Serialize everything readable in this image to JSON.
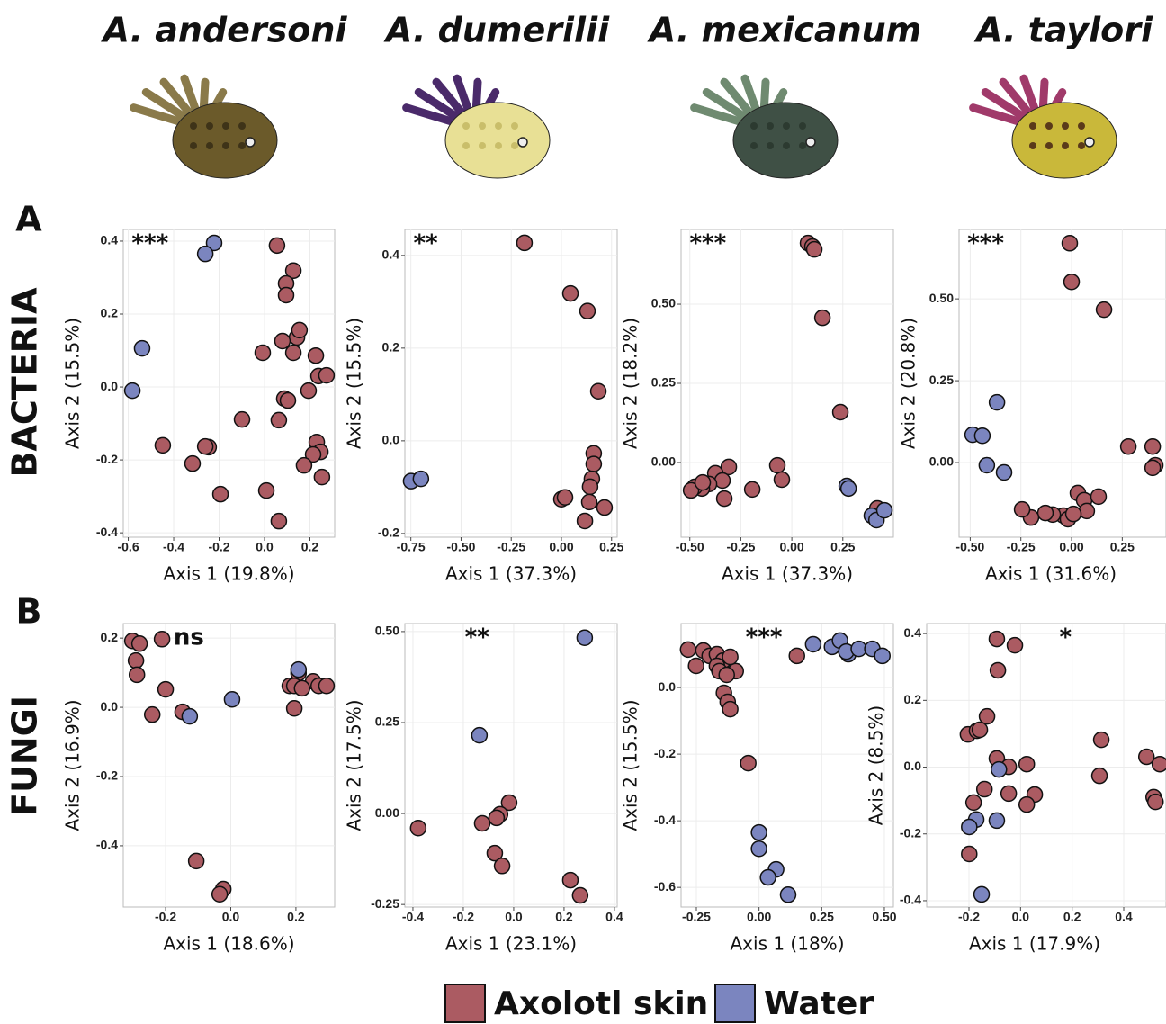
{
  "species": [
    "A. andersoni",
    "A. dumerilii",
    "A. mexicanum",
    "A. taylori"
  ],
  "panel_labels": [
    "A",
    "B"
  ],
  "row_labels": [
    "BACTERIA",
    "FUNGI"
  ],
  "chart_data": [
    {
      "type": "scatter",
      "annotation": "***",
      "xlabel": "Axis 1 (19.8%)",
      "ylabel": "Axis 2 (15.5%)",
      "grid": true,
      "xlim": [
        -0.622,
        0.309
      ],
      "ylim": [
        -0.412,
        0.432
      ],
      "xticks": [
        -0.6,
        -0.4,
        -0.2,
        {
          "value": 0,
          "label": "0.0"
        },
        0.2
      ],
      "yticks": [
        -0.4,
        -0.2,
        {
          "value": 0,
          "label": "0.0"
        },
        0.2,
        0.4
      ],
      "series": [
        {
          "name": "Axolotl skin",
          "color": "#ab5b62",
          "x": [
            0.055,
            0.127,
            0.095,
            0.095,
            0.143,
            0.154,
            0.079,
            0.127,
            -0.008,
            0.226,
            0.087,
            0.103,
            0.194,
            0.238,
            0.273,
            0.063,
            -0.099,
            0.23,
            -0.448,
            -0.246,
            -0.261,
            -0.317,
            0.246,
            0.214,
            0.174,
            0.253,
            -0.194,
            0.008,
            0.063
          ],
          "values": [
            0.388,
            0.319,
            0.284,
            0.252,
            0.136,
            0.156,
            0.126,
            0.094,
            0.094,
            0.086,
            -0.032,
            -0.037,
            -0.01,
            0.03,
            0.032,
            -0.091,
            -0.089,
            -0.151,
            -0.16,
            -0.165,
            -0.163,
            -0.21,
            -0.178,
            -0.185,
            -0.215,
            -0.247,
            -0.294,
            -0.284,
            -0.368
          ]
        },
        {
          "name": "Water",
          "color": "#7b85bf",
          "x": [
            -0.222,
            -0.261,
            -0.539,
            -0.582
          ],
          "values": [
            0.395,
            0.365,
            0.106,
            -0.01
          ]
        }
      ]
    },
    {
      "type": "scatter",
      "annotation": "**",
      "xlabel": "Axis 1 (37.3%)",
      "ylabel": "Axis 2 (15.5%)",
      "grid": true,
      "xlim": [
        -0.78,
        0.278
      ],
      "ylim": [
        -0.208,
        0.456
      ],
      "xticks": [
        -0.75,
        {
          "value": -0.5,
          "label": "-0.50"
        },
        -0.25,
        {
          "value": 0,
          "label": "0.00"
        },
        0.25
      ],
      "yticks": [
        -0.2,
        {
          "value": 0,
          "label": "0.0"
        },
        0.2,
        0.4
      ],
      "series": [
        {
          "name": "Axolotl skin",
          "color": "#ab5b62",
          "x": [
            -0.184,
            0.045,
            0.13,
            0.184,
            0.161,
            0.161,
            0.152,
            0.143,
            0.139,
            0.0,
            0.018,
            0.215,
            0.117
          ],
          "values": [
            0.427,
            0.318,
            0.28,
            0.107,
            -0.027,
            -0.05,
            -0.082,
            -0.099,
            -0.132,
            -0.126,
            -0.122,
            -0.144,
            -0.173
          ]
        },
        {
          "name": "Water",
          "color": "#7b85bf",
          "x": [
            -0.749,
            -0.7
          ],
          "values": [
            -0.087,
            -0.082
          ]
        }
      ]
    },
    {
      "type": "scatter",
      "annotation": "***",
      "xlabel": "Axis 1 (37.3%)",
      "ylabel": "Axis 2 (18.2%)",
      "grid": true,
      "xlim": [
        -0.543,
        0.498
      ],
      "ylim": [
        -0.236,
        0.736
      ],
      "xticks": [
        {
          "value": -0.5,
          "label": "-0.50"
        },
        -0.25,
        {
          "value": 0,
          "label": "0.00"
        },
        0.25
      ],
      "yticks": [
        {
          "value": 0,
          "label": "0.00"
        },
        0.25,
        {
          "value": 0.5,
          "label": "0.50"
        }
      ],
      "series": [
        {
          "name": "Axolotl skin",
          "color": "#ab5b62",
          "x": [
            0.079,
            0.101,
            0.11,
            0.15,
            0.238,
            -0.071,
            -0.049,
            -0.194,
            -0.309,
            -0.375,
            -0.34,
            -0.406,
            -0.441,
            -0.476,
            -0.331,
            -0.494,
            -0.437,
            0.419
          ],
          "values": [
            0.693,
            0.682,
            0.673,
            0.457,
            0.159,
            -0.009,
            -0.054,
            -0.085,
            -0.014,
            -0.034,
            -0.057,
            -0.068,
            -0.082,
            -0.077,
            -0.114,
            -0.088,
            -0.063,
            -0.145
          ]
        },
        {
          "name": "Water",
          "color": "#7b85bf",
          "x": [
            0.269,
            0.278,
            0.392,
            0.415,
            0.454
          ],
          "values": [
            -0.074,
            -0.082,
            -0.168,
            -0.182,
            -0.151
          ]
        }
      ]
    },
    {
      "type": "scatter",
      "annotation": "***",
      "xlabel": "Axis 1 (31.6%)",
      "ylabel": "Axis 2 (20.8%)",
      "grid": true,
      "xlim": [
        -0.555,
        0.466
      ],
      "ylim": [
        -0.228,
        0.712
      ],
      "xticks": [
        {
          "value": -0.5,
          "label": "-0.50"
        },
        -0.25,
        {
          "value": 0,
          "label": "0.00"
        },
        0.25
      ],
      "yticks": [
        {
          "value": 0,
          "label": "0.00"
        },
        0.25,
        {
          "value": 0.5,
          "label": "0.50"
        }
      ],
      "series": [
        {
          "name": "Axolotl skin",
          "color": "#ab5b62",
          "x": [
            -0.009,
            0.0,
            0.16,
            0.28,
            0.4,
            0.413,
            0.4,
            0.031,
            0.062,
            0.133,
            0.075,
            -0.04,
            -0.018,
            -0.093,
            -0.129,
            -0.2,
            -0.244,
            0.009
          ],
          "values": [
            0.67,
            0.552,
            0.467,
            0.049,
            0.049,
            -0.008,
            -0.016,
            -0.093,
            -0.115,
            -0.104,
            -0.148,
            -0.162,
            -0.173,
            -0.159,
            -0.154,
            -0.168,
            -0.143,
            -0.157
          ]
        },
        {
          "name": "Water",
          "color": "#7b85bf",
          "x": [
            -0.488,
            -0.44,
            -0.368,
            -0.418,
            -0.333
          ],
          "values": [
            0.085,
            0.082,
            0.184,
            -0.008,
            -0.03
          ]
        }
      ]
    },
    {
      "type": "scatter",
      "annotation": "ns",
      "xlabel": "Axis 1 (18.6%)",
      "ylabel": "Axis 2 (16.9%)",
      "grid": true,
      "xlim": [
        -0.33,
        0.319
      ],
      "ylim": [
        -0.577,
        0.242
      ],
      "xticks": [
        -0.2,
        {
          "value": 0,
          "label": "0.0"
        },
        0.2
      ],
      "yticks": [
        -0.4,
        -0.2,
        {
          "value": 0,
          "label": "0.0"
        },
        0.2
      ],
      "series": [
        {
          "name": "Axolotl skin",
          "color": "#ab5b62",
          "x": [
            -0.302,
            -0.28,
            -0.211,
            -0.291,
            -0.288,
            -0.2,
            -0.241,
            -0.148,
            0.208,
            0.181,
            0.195,
            0.253,
            0.27,
            0.294,
            0.219,
            0.195,
            -0.106,
            -0.023,
            -0.034
          ],
          "values": [
            0.192,
            0.184,
            0.197,
            0.135,
            0.094,
            0.052,
            -0.021,
            -0.013,
            0.099,
            0.062,
            0.062,
            0.075,
            0.062,
            0.062,
            0.055,
            -0.003,
            -0.444,
            -0.525,
            -0.54
          ]
        },
        {
          "name": "Water",
          "color": "#7b85bf",
          "x": [
            0.004,
            -0.126,
            0.208
          ],
          "values": [
            0.023,
            -0.026,
            0.109
          ]
        }
      ]
    },
    {
      "type": "scatter",
      "annotation": "**",
      "xlabel": "Axis 1 (23.1%)",
      "ylabel": "Axis 2 (17.5%)",
      "grid": true,
      "xlim": [
        -0.432,
        0.411
      ],
      "ylim": [
        -0.257,
        0.522
      ],
      "xticks": [
        -0.4,
        -0.2,
        {
          "value": 0,
          "label": "0.0"
        },
        0.2,
        0.4
      ],
      "yticks": [
        -0.25,
        {
          "value": 0,
          "label": "0.00"
        },
        0.25,
        {
          "value": 0.5,
          "label": "0.50"
        }
      ],
      "series": [
        {
          "name": "Axolotl skin",
          "color": "#ab5b62",
          "x": [
            -0.379,
            -0.018,
            -0.054,
            -0.068,
            -0.125,
            -0.075,
            -0.046,
            0.225,
            0.264
          ],
          "values": [
            -0.04,
            0.03,
            -0.002,
            -0.012,
            -0.027,
            -0.109,
            -0.144,
            -0.183,
            -0.225
          ]
        },
        {
          "name": "Water",
          "color": "#7b85bf",
          "x": [
            0.282,
            -0.136
          ],
          "values": [
            0.483,
            0.215
          ]
        }
      ]
    },
    {
      "type": "scatter",
      "annotation": "***",
      "xlabel": "Axis 1 (18%)",
      "ylabel": "Axis 2 (15.5%)",
      "grid": true,
      "xlim": [
        -0.311,
        0.536
      ],
      "ylim": [
        -0.659,
        0.192
      ],
      "xticks": [
        -0.25,
        {
          "value": 0,
          "label": "0.00"
        },
        0.25,
        {
          "value": 0.5,
          "label": "0.50"
        }
      ],
      "yticks": [
        -0.6,
        -0.4,
        -0.2,
        {
          "value": 0,
          "label": "0.0"
        }
      ],
      "series": [
        {
          "name": "Axolotl skin",
          "color": "#ab5b62",
          "x": [
            -0.283,
            -0.222,
            -0.251,
            -0.197,
            -0.168,
            -0.143,
            -0.168,
            -0.158,
            -0.093,
            -0.129,
            -0.14,
            -0.125,
            -0.115,
            -0.043,
            0.151,
            -0.115
          ],
          "values": [
            0.114,
            0.111,
            0.065,
            0.095,
            0.1,
            0.081,
            0.065,
            0.049,
            0.049,
            0.038,
            -0.016,
            -0.043,
            -0.065,
            -0.227,
            0.095,
            0.092
          ]
        },
        {
          "name": "Water",
          "color": "#7b85bf",
          "x": [
            0.216,
            0.291,
            0.323,
            0.356,
            0.348,
            0.398,
            0.452,
            0.492,
            0.0,
            0.0,
            0.068,
            0.036,
            0.116
          ],
          "values": [
            0.13,
            0.122,
            0.141,
            0.1,
            0.108,
            0.116,
            0.116,
            0.095,
            -0.435,
            -0.484,
            -0.546,
            -0.57,
            -0.622
          ]
        }
      ]
    },
    {
      "type": "scatter",
      "annotation": "*",
      "xlabel": "Axis 1 (17.9%)",
      "ylabel": "Axis 2 (8.5%)",
      "grid": true,
      "xlim": [
        -0.364,
        0.564
      ],
      "ylim": [
        -0.419,
        0.43
      ],
      "xticks": [
        -0.2,
        {
          "value": 0,
          "label": "0.0"
        },
        0.2,
        0.4
      ],
      "yticks": [
        -0.4,
        -0.2,
        {
          "value": 0,
          "label": "0.0"
        },
        0.2,
        0.4
      ],
      "series": [
        {
          "name": "Axolotl skin",
          "color": "#ab5b62",
          "x": [
            -0.092,
            -0.022,
            -0.088,
            -0.13,
            0.313,
            0.488,
            0.54,
            -0.204,
            -0.169,
            -0.158,
            -0.092,
            -0.046,
            0.024,
            -0.14,
            -0.046,
            0.055,
            0.024,
            -0.182,
            0.306,
            0.516,
            0.523,
            -0.199
          ],
          "values": [
            0.384,
            0.365,
            0.29,
            0.152,
            0.082,
            0.031,
            0.009,
            0.098,
            0.109,
            0.112,
            0.026,
            0.001,
            0.009,
            -0.066,
            -0.079,
            -0.082,
            -0.112,
            -0.106,
            -0.026,
            -0.09,
            -0.104,
            -0.26
          ]
        },
        {
          "name": "Water",
          "color": "#7b85bf",
          "x": [
            -0.084,
            -0.092,
            -0.172,
            -0.199,
            -0.151
          ],
          "values": [
            -0.007,
            -0.16,
            -0.157,
            -0.179,
            -0.381
          ]
        }
      ]
    }
  ]
}
